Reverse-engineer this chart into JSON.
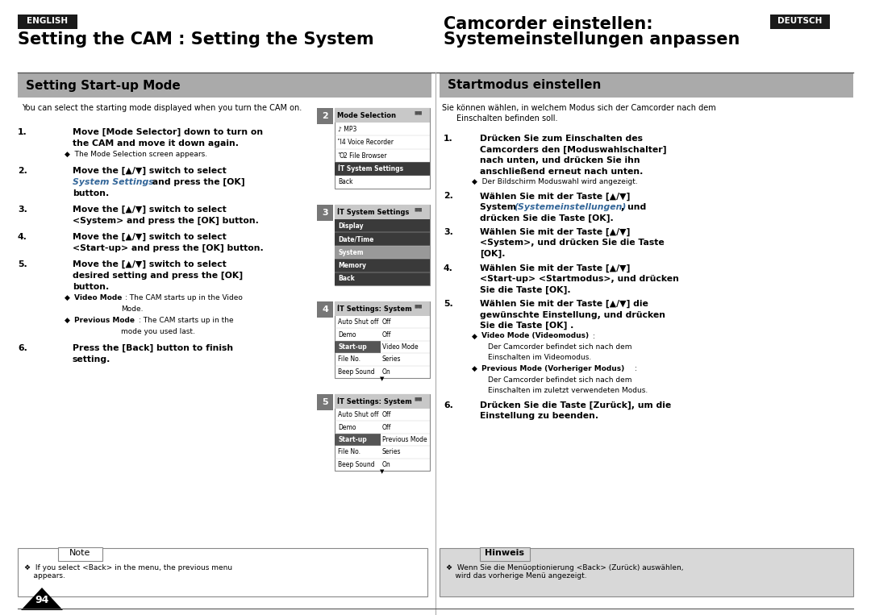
{
  "bg_color": "#ffffff",
  "badge_bg": "#1a1a1a",
  "badge_fg": "#ffffff",
  "english_badge": "ENGLISH",
  "deutsch_badge": "DEUTSCH",
  "main_title_left": "Setting the CAM : Setting the System",
  "main_title_right_line1": "Camcorder einstellen:",
  "main_title_right_line2": "Systemeinstellungen anpassen",
  "section_left": "Setting Start-up Mode",
  "section_right": "Startmodus einstellen",
  "section_bar_color": "#aaaaaa",
  "divider_color": "#888888",
  "intro_left": "You can select the starting mode displayed when you turn the CAM on.",
  "intro_right_line1": "Sie können wählen, in welchem Modus sich der Camcorder nach dem",
  "intro_right_line2": "Einschalten befinden soll.",
  "note_left_label": "Note",
  "note_left_text": "❖  If you select <Back> in the menu, the previous menu\n    appears.",
  "note_right_label": "Hinweis",
  "note_right_text": "❖  Wenn Sie die Menüoptionierung <Back> (Zurück) auswählen,\n    wird das vorherige Menü angezeigt.",
  "page_num": "94",
  "panel2_items": [
    {
      "label": "♪ MP3",
      "dark": false,
      "selected": false
    },
    {
      "label": "🎤 Voice Recorder",
      "dark": false,
      "selected": false
    },
    {
      "label": "📂 File Browser",
      "dark": false,
      "selected": false
    },
    {
      "label": "ᴵᵀ System Settings",
      "dark": true,
      "selected": true
    },
    {
      "label": "Back",
      "dark": false,
      "selected": false
    }
  ],
  "panel3_items": [
    {
      "label": "Display",
      "dark": true
    },
    {
      "label": "Date/Time",
      "dark": true
    },
    {
      "label": "System",
      "dark": false,
      "gray": true
    },
    {
      "label": "Memory",
      "dark": true
    },
    {
      "label": "Back",
      "dark": true
    }
  ],
  "panel4_items": [
    {
      "label": "Auto Shut off",
      "value": "Off",
      "hl": false
    },
    {
      "label": "Demo",
      "value": "Off",
      "hl": false
    },
    {
      "label": "Start-up",
      "value": "Video Mode",
      "hl": true
    },
    {
      "label": "File No.",
      "value": "Series",
      "hl": false
    },
    {
      "label": "Beep Sound",
      "value": "On",
      "hl": false
    }
  ],
  "panel5_items": [
    {
      "label": "Auto Shut off",
      "value": "Off",
      "hl": false
    },
    {
      "label": "Demo",
      "value": "Off",
      "hl": false
    },
    {
      "label": "Start-up",
      "value": "Previous Mode",
      "hl": true
    },
    {
      "label": "File No.",
      "value": "Series",
      "hl": false
    },
    {
      "label": "Beep Sound",
      "value": "On",
      "hl": false
    }
  ]
}
